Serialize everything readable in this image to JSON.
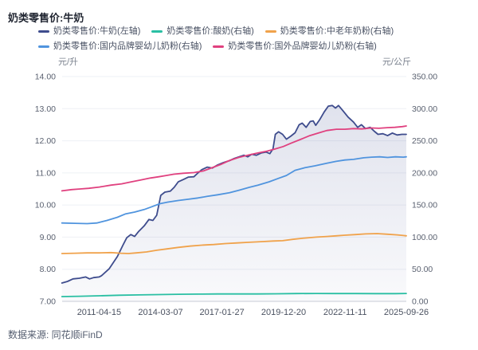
{
  "page": {
    "source": "数据来源: 同花顺iFinD"
  },
  "chart_data": {
    "type": "line",
    "title": "奶类零售价:牛奶",
    "grid": true,
    "legend_position": "top",
    "x_range": [
      2009.55,
      2025.74
    ],
    "x_ticks": [
      {
        "label": "2011-04-15",
        "x": 2011.29
      },
      {
        "label": "2014-03-07",
        "x": 2014.18
      },
      {
        "label": "2017-01-27",
        "x": 2017.07
      },
      {
        "label": "2019-12-20",
        "x": 2019.97
      },
      {
        "label": "2022-11-11",
        "x": 2022.86
      },
      {
        "label": "2025-09-26",
        "x": 2025.74
      }
    ],
    "left_axis": {
      "unit": "元/升",
      "min": 7,
      "max": 14,
      "tick_step": 1
    },
    "right_axis": {
      "unit": "元/公斤",
      "min": 0,
      "max": 350,
      "tick_step": 50
    },
    "colors": {
      "grid": "#eef0f5",
      "baseline": "#c9cdd6",
      "axis_text": "#5a6170",
      "x_tick_text": "#4a5160",
      "area_fill": "#3d4b8e"
    },
    "series": [
      {
        "name": "奶类零售价:牛奶(左轴)",
        "axis": "left",
        "color": "#3e4c8d",
        "area": true,
        "points": [
          [
            2009.54,
            7.57
          ],
          [
            2009.8,
            7.62
          ],
          [
            2010.06,
            7.7
          ],
          [
            2010.36,
            7.72
          ],
          [
            2010.66,
            7.76
          ],
          [
            2010.84,
            7.7
          ],
          [
            2011.03,
            7.74
          ],
          [
            2011.29,
            7.76
          ],
          [
            2011.4,
            7.8
          ],
          [
            2011.77,
            8.02
          ],
          [
            2012.15,
            8.4
          ],
          [
            2012.41,
            8.75
          ],
          [
            2012.59,
            8.98
          ],
          [
            2012.78,
            9.08
          ],
          [
            2012.96,
            9.02
          ],
          [
            2013.15,
            9.18
          ],
          [
            2013.41,
            9.35
          ],
          [
            2013.63,
            9.55
          ],
          [
            2013.82,
            9.52
          ],
          [
            2014.0,
            9.68
          ],
          [
            2014.19,
            10.3
          ],
          [
            2014.38,
            10.4
          ],
          [
            2014.64,
            10.43
          ],
          [
            2014.82,
            10.55
          ],
          [
            2015.01,
            10.72
          ],
          [
            2015.27,
            10.8
          ],
          [
            2015.49,
            10.87
          ],
          [
            2015.75,
            10.88
          ],
          [
            2015.94,
            11.0
          ],
          [
            2016.12,
            11.1
          ],
          [
            2016.38,
            11.18
          ],
          [
            2016.61,
            11.15
          ],
          [
            2016.87,
            11.25
          ],
          [
            2017.13,
            11.32
          ],
          [
            2017.42,
            11.38
          ],
          [
            2017.65,
            11.45
          ],
          [
            2017.87,
            11.5
          ],
          [
            2018.1,
            11.55
          ],
          [
            2018.28,
            11.5
          ],
          [
            2018.47,
            11.58
          ],
          [
            2018.69,
            11.55
          ],
          [
            2018.91,
            11.62
          ],
          [
            2019.14,
            11.65
          ],
          [
            2019.32,
            11.6
          ],
          [
            2019.47,
            11.75
          ],
          [
            2019.58,
            12.2
          ],
          [
            2019.73,
            12.28
          ],
          [
            2019.92,
            12.2
          ],
          [
            2020.1,
            12.05
          ],
          [
            2020.32,
            12.15
          ],
          [
            2020.51,
            12.25
          ],
          [
            2020.7,
            12.5
          ],
          [
            2020.84,
            12.55
          ],
          [
            2021.03,
            12.42
          ],
          [
            2021.22,
            12.6
          ],
          [
            2021.36,
            12.62
          ],
          [
            2021.48,
            12.48
          ],
          [
            2021.66,
            12.65
          ],
          [
            2021.88,
            12.9
          ],
          [
            2022.07,
            13.08
          ],
          [
            2022.26,
            13.1
          ],
          [
            2022.41,
            13.02
          ],
          [
            2022.55,
            13.1
          ],
          [
            2022.74,
            12.95
          ],
          [
            2023.0,
            12.74
          ],
          [
            2023.26,
            12.58
          ],
          [
            2023.45,
            12.42
          ],
          [
            2023.63,
            12.5
          ],
          [
            2023.82,
            12.38
          ],
          [
            2024.04,
            12.42
          ],
          [
            2024.23,
            12.3
          ],
          [
            2024.41,
            12.2
          ],
          [
            2024.64,
            12.22
          ],
          [
            2024.86,
            12.16
          ],
          [
            2025.08,
            12.24
          ],
          [
            2025.31,
            12.18
          ],
          [
            2025.53,
            12.2
          ],
          [
            2025.74,
            12.2
          ]
        ]
      },
      {
        "name": "奶类零售价:酸奶(右轴)",
        "axis": "right",
        "color": "#2abfa3",
        "points": [
          [
            2009.54,
            7.5
          ],
          [
            2010.36,
            8.0
          ],
          [
            2011.29,
            8.7
          ],
          [
            2012.22,
            9.5
          ],
          [
            2013.15,
            10.0
          ],
          [
            2014.08,
            10.6
          ],
          [
            2015.01,
            11.0
          ],
          [
            2015.94,
            11.3
          ],
          [
            2016.87,
            11.5
          ],
          [
            2017.79,
            11.5
          ],
          [
            2018.72,
            11.6
          ],
          [
            2019.65,
            11.8
          ],
          [
            2020.58,
            12.2
          ],
          [
            2021.51,
            12.3
          ],
          [
            2022.44,
            12.2
          ],
          [
            2023.37,
            12.2
          ],
          [
            2024.3,
            12.1
          ],
          [
            2025.23,
            12.1
          ],
          [
            2025.74,
            12.3
          ]
        ]
      },
      {
        "name": "奶类零售价:中老年奶粉(右轴)",
        "axis": "right",
        "color": "#f0a24b",
        "points": [
          [
            2009.54,
            74.5
          ],
          [
            2010.17,
            75.0
          ],
          [
            2010.73,
            75.5
          ],
          [
            2011.29,
            75.5
          ],
          [
            2011.85,
            76.0
          ],
          [
            2012.3,
            75.0
          ],
          [
            2012.67,
            74.5
          ],
          [
            2013.04,
            75.5
          ],
          [
            2013.52,
            77.0
          ],
          [
            2014.0,
            79.5
          ],
          [
            2014.45,
            81.5
          ],
          [
            2015.01,
            84.0
          ],
          [
            2015.56,
            86.0
          ],
          [
            2016.12,
            87.5
          ],
          [
            2016.68,
            88.5
          ],
          [
            2017.24,
            90.0
          ],
          [
            2017.79,
            91.0
          ],
          [
            2018.35,
            92.0
          ],
          [
            2018.91,
            93.0
          ],
          [
            2019.47,
            94.0
          ],
          [
            2019.92,
            94.5
          ],
          [
            2020.4,
            96.5
          ],
          [
            2020.96,
            98.5
          ],
          [
            2021.51,
            100.0
          ],
          [
            2022.0,
            101.0
          ],
          [
            2022.44,
            102.0
          ],
          [
            2022.85,
            103.0
          ],
          [
            2023.37,
            104.0
          ],
          [
            2023.82,
            105.0
          ],
          [
            2024.37,
            105.5
          ],
          [
            2024.86,
            104.5
          ],
          [
            2025.31,
            103.5
          ],
          [
            2025.6,
            102.5
          ],
          [
            2025.74,
            102.0
          ]
        ]
      },
      {
        "name": "奶类零售价:国内品牌婴幼儿奶粉(右轴)",
        "axis": "right",
        "color": "#5094de",
        "points": [
          [
            2009.54,
            122
          ],
          [
            2010.17,
            121.5
          ],
          [
            2010.73,
            121
          ],
          [
            2011.18,
            122
          ],
          [
            2011.66,
            126
          ],
          [
            2012.15,
            131
          ],
          [
            2012.52,
            136
          ],
          [
            2012.96,
            139
          ],
          [
            2013.41,
            143
          ],
          [
            2013.78,
            147.5
          ],
          [
            2014.15,
            152
          ],
          [
            2014.52,
            154.5
          ],
          [
            2015.01,
            157
          ],
          [
            2015.49,
            159
          ],
          [
            2015.94,
            161
          ],
          [
            2016.38,
            163.5
          ],
          [
            2016.87,
            166
          ],
          [
            2017.42,
            169
          ],
          [
            2017.87,
            173
          ],
          [
            2018.35,
            177.5
          ],
          [
            2018.76,
            181
          ],
          [
            2019.28,
            186
          ],
          [
            2019.73,
            191.5
          ],
          [
            2020.1,
            196
          ],
          [
            2020.51,
            204
          ],
          [
            2020.96,
            208
          ],
          [
            2021.44,
            211
          ],
          [
            2022.0,
            215
          ],
          [
            2022.44,
            218
          ],
          [
            2022.85,
            220
          ],
          [
            2023.26,
            221
          ],
          [
            2023.74,
            223.5
          ],
          [
            2024.11,
            224.5
          ],
          [
            2024.49,
            225
          ],
          [
            2024.86,
            224
          ],
          [
            2025.23,
            225
          ],
          [
            2025.6,
            224.5
          ],
          [
            2025.74,
            225
          ]
        ]
      },
      {
        "name": "奶类零售价:国外品牌婴幼儿奶粉(右轴)",
        "axis": "right",
        "color": "#e0417f",
        "points": [
          [
            2009.54,
            172
          ],
          [
            2010.0,
            174
          ],
          [
            2010.4,
            175
          ],
          [
            2010.8,
            176
          ],
          [
            2011.3,
            178
          ],
          [
            2011.85,
            181
          ],
          [
            2012.35,
            183
          ],
          [
            2012.8,
            186
          ],
          [
            2013.25,
            189
          ],
          [
            2013.7,
            192
          ],
          [
            2014.1,
            194
          ],
          [
            2014.45,
            196
          ],
          [
            2014.8,
            198
          ],
          [
            2015.25,
            199.5
          ],
          [
            2015.75,
            200.5
          ],
          [
            2016.2,
            203
          ],
          [
            2016.6,
            208
          ],
          [
            2017.0,
            213
          ],
          [
            2017.4,
            219
          ],
          [
            2017.85,
            224
          ],
          [
            2018.35,
            228
          ],
          [
            2018.75,
            231
          ],
          [
            2019.2,
            234
          ],
          [
            2019.55,
            237
          ],
          [
            2019.95,
            241
          ],
          [
            2020.3,
            246
          ],
          [
            2020.75,
            252
          ],
          [
            2021.2,
            258
          ],
          [
            2021.6,
            262
          ],
          [
            2022.0,
            266
          ],
          [
            2022.45,
            268
          ],
          [
            2022.85,
            268
          ],
          [
            2023.25,
            269
          ],
          [
            2023.65,
            268.5
          ],
          [
            2024.1,
            270
          ],
          [
            2024.45,
            269.5
          ],
          [
            2024.85,
            270.5
          ],
          [
            2025.2,
            271
          ],
          [
            2025.55,
            272
          ],
          [
            2025.74,
            273
          ]
        ]
      }
    ]
  }
}
